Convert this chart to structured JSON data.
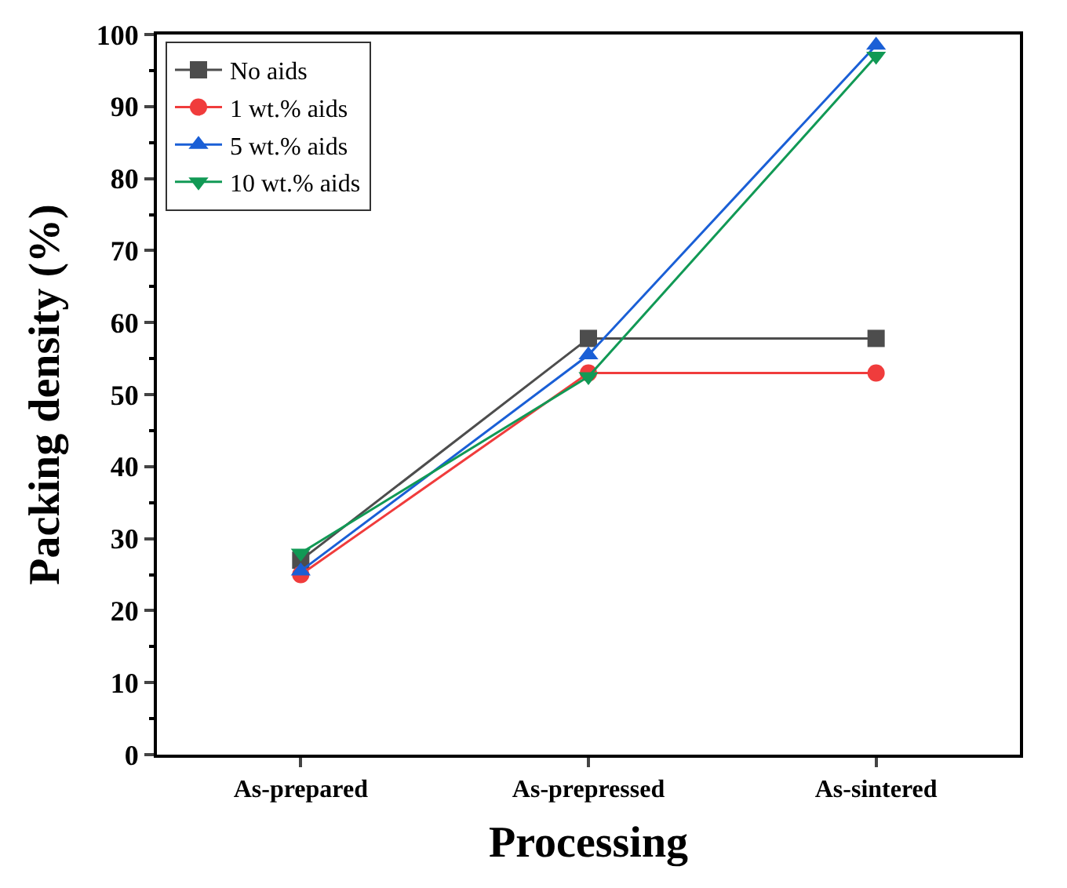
{
  "chart_data": {
    "type": "line",
    "xlabel": "Processing",
    "ylabel": "Packing density (%)",
    "categories": [
      "As-prepared",
      "As-prepressed",
      "As-sintered"
    ],
    "series": [
      {
        "name": "No aids",
        "color": "#4d4d4d",
        "marker": "square",
        "values": [
          27,
          57.8,
          57.8
        ]
      },
      {
        "name": "1 wt.% aids",
        "color": "#f03c3c",
        "marker": "circle",
        "values": [
          25,
          53,
          53
        ]
      },
      {
        "name": "5 wt.% aids",
        "color": "#1a5fd6",
        "marker": "triangle",
        "values": [
          25.5,
          55.5,
          98.5
        ]
      },
      {
        "name": "10 wt.% aids",
        "color": "#119955",
        "marker": "triangle-down",
        "values": [
          28,
          52.5,
          97
        ]
      }
    ],
    "ylim": [
      0,
      100
    ],
    "yticks": [
      0,
      10,
      20,
      30,
      40,
      50,
      60,
      70,
      80,
      90,
      100
    ],
    "legend": "top left",
    "line_style": "solid"
  }
}
